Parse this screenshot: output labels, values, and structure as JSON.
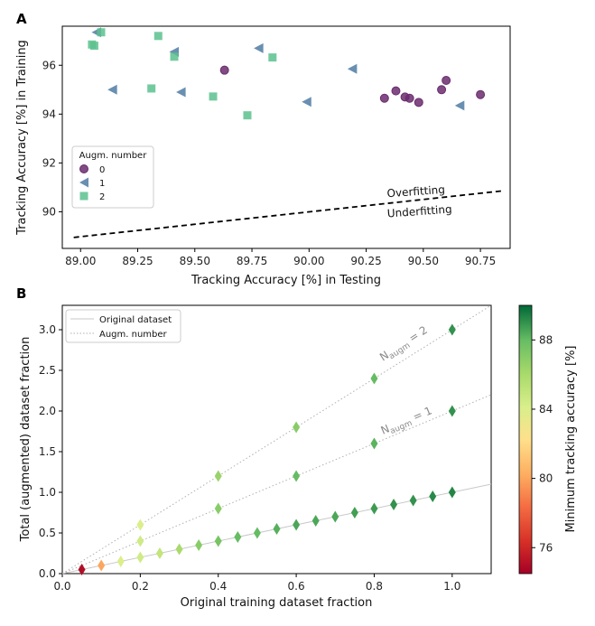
{
  "chart_data": [
    {
      "panel": "A",
      "type": "scatter",
      "xlabel": "Tracking Accuracy [%] in Testing",
      "ylabel": "Tracking Accuracy [%] in Training",
      "xlim": [
        88.92,
        90.88
      ],
      "ylim": [
        88.5,
        97.6
      ],
      "xticks": [
        "89.00",
        "89.25",
        "89.50",
        "89.75",
        "90.00",
        "90.25",
        "90.50",
        "90.75"
      ],
      "xtick_values": [
        89.0,
        89.25,
        89.5,
        89.75,
        90.0,
        90.25,
        90.5,
        90.75
      ],
      "yticks": [
        "90",
        "92",
        "94",
        "96"
      ],
      "ytick_values": [
        90,
        92,
        94,
        96
      ],
      "legend": {
        "title": "Augm. number",
        "position": "left",
        "entries": [
          {
            "label": "0",
            "marker": "circle",
            "color": "#6b2c6e"
          },
          {
            "label": "1",
            "marker": "triangle-left",
            "color": "#4f7ba3"
          },
          {
            "label": "2",
            "marker": "square",
            "color": "#5cc18e"
          }
        ]
      },
      "series": [
        {
          "name": "0",
          "marker": "circle",
          "color": "#6b2c6e",
          "points": [
            [
              89.63,
              95.8
            ],
            [
              90.33,
              94.65
            ],
            [
              90.38,
              94.95
            ],
            [
              90.42,
              94.7
            ],
            [
              90.44,
              94.65
            ],
            [
              90.48,
              94.48
            ],
            [
              90.58,
              95.0
            ],
            [
              90.6,
              95.38
            ],
            [
              90.75,
              94.8
            ]
          ]
        },
        {
          "name": "1",
          "marker": "triangle-left",
          "color": "#4f7ba3",
          "points": [
            [
              89.07,
              97.35
            ],
            [
              89.14,
              95.0
            ],
            [
              89.41,
              96.55
            ],
            [
              89.44,
              94.9
            ],
            [
              89.78,
              96.7
            ],
            [
              89.99,
              94.5
            ],
            [
              90.19,
              95.85
            ],
            [
              90.66,
              94.35
            ]
          ]
        },
        {
          "name": "2",
          "marker": "square",
          "color": "#5cc18e",
          "points": [
            [
              89.05,
              96.85
            ],
            [
              89.06,
              96.8
            ],
            [
              89.09,
              97.35
            ],
            [
              89.31,
              95.05
            ],
            [
              89.34,
              97.2
            ],
            [
              89.41,
              96.35
            ],
            [
              89.58,
              94.72
            ],
            [
              89.73,
              93.95
            ],
            [
              89.84,
              96.32
            ]
          ]
        }
      ],
      "reference_line": {
        "style": "dashed",
        "from": [
          88.97,
          88.95
        ],
        "to": [
          90.84,
          90.85
        ]
      },
      "annotations": [
        "Overfitting",
        "Underfitting"
      ]
    },
    {
      "panel": "B",
      "type": "scatter",
      "xlabel": "Original training dataset fraction",
      "ylabel": "Total (augmented) dataset fraction",
      "xlim": [
        0.0,
        1.1
      ],
      "ylim": [
        0.0,
        3.3
      ],
      "xticks": [
        "0.0",
        "0.2",
        "0.4",
        "0.6",
        "0.8",
        "1.0"
      ],
      "xtick_values": [
        0.0,
        0.2,
        0.4,
        0.6,
        0.8,
        1.0
      ],
      "yticks": [
        "0.0",
        "0.5",
        "1.0",
        "1.5",
        "2.0",
        "2.5",
        "3.0"
      ],
      "ytick_values": [
        0.0,
        0.5,
        1.0,
        1.5,
        2.0,
        2.5,
        3.0
      ],
      "legend": {
        "position": "top-left",
        "entries": [
          {
            "label": "Original dataset",
            "style": "solid"
          },
          {
            "label": "Augm. number",
            "style": "dotted"
          }
        ]
      },
      "reference_lines": [
        {
          "name": "Original dataset",
          "slope": 1
        },
        {
          "name": "N_augm = 1",
          "slope": 2
        },
        {
          "name": "N_augm = 2",
          "slope": 3
        }
      ],
      "line_labels": [
        {
          "base": "N",
          "sub": "augm",
          "suffix": " = 2"
        },
        {
          "base": "N",
          "sub": "augm",
          "suffix": " = 1"
        }
      ],
      "colorbar": {
        "label": "Minimum tracking accuracy [%]",
        "ticks": [
          "76",
          "80",
          "84",
          "88"
        ],
        "tick_values": [
          76,
          80,
          84,
          88
        ],
        "range": [
          74.5,
          90.0
        ]
      },
      "points": [
        {
          "x": 0.05,
          "y": 0.05,
          "acc": 75.0
        },
        {
          "x": 0.1,
          "y": 0.1,
          "acc": 80.0
        },
        {
          "x": 0.15,
          "y": 0.15,
          "acc": 84.0
        },
        {
          "x": 0.2,
          "y": 0.2,
          "acc": 84.5
        },
        {
          "x": 0.25,
          "y": 0.25,
          "acc": 85.0
        },
        {
          "x": 0.3,
          "y": 0.3,
          "acc": 86.0
        },
        {
          "x": 0.35,
          "y": 0.35,
          "acc": 87.0
        },
        {
          "x": 0.4,
          "y": 0.4,
          "acc": 87.5
        },
        {
          "x": 0.45,
          "y": 0.45,
          "acc": 88.0
        },
        {
          "x": 0.5,
          "y": 0.5,
          "acc": 88.0
        },
        {
          "x": 0.55,
          "y": 0.55,
          "acc": 88.3
        },
        {
          "x": 0.6,
          "y": 0.6,
          "acc": 88.5
        },
        {
          "x": 0.65,
          "y": 0.65,
          "acc": 88.5
        },
        {
          "x": 0.7,
          "y": 0.7,
          "acc": 88.5
        },
        {
          "x": 0.75,
          "y": 0.75,
          "acc": 88.7
        },
        {
          "x": 0.8,
          "y": 0.8,
          "acc": 88.8
        },
        {
          "x": 0.85,
          "y": 0.85,
          "acc": 89.0
        },
        {
          "x": 0.9,
          "y": 0.9,
          "acc": 89.0
        },
        {
          "x": 0.95,
          "y": 0.95,
          "acc": 89.2
        },
        {
          "x": 1.0,
          "y": 1.0,
          "acc": 89.3
        },
        {
          "x": 0.2,
          "y": 0.4,
          "acc": 84.5
        },
        {
          "x": 0.4,
          "y": 0.8,
          "acc": 87.0
        },
        {
          "x": 0.6,
          "y": 1.2,
          "acc": 88.0
        },
        {
          "x": 0.8,
          "y": 1.6,
          "acc": 88.2
        },
        {
          "x": 1.0,
          "y": 2.0,
          "acc": 89.0
        },
        {
          "x": 0.2,
          "y": 0.6,
          "acc": 84.0
        },
        {
          "x": 0.4,
          "y": 1.2,
          "acc": 86.5
        },
        {
          "x": 0.6,
          "y": 1.8,
          "acc": 87.0
        },
        {
          "x": 0.8,
          "y": 2.4,
          "acc": 88.0
        },
        {
          "x": 1.0,
          "y": 3.0,
          "acc": 89.0
        }
      ]
    }
  ]
}
